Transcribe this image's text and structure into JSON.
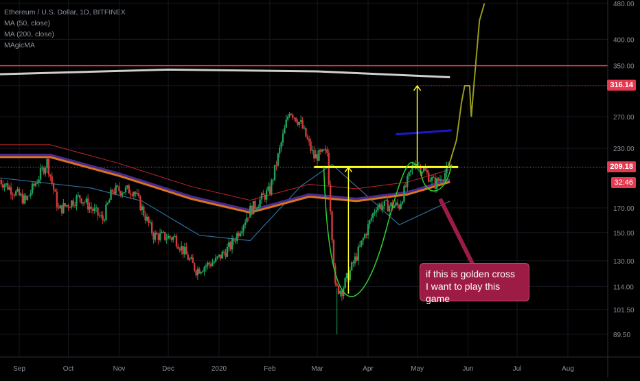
{
  "legend": {
    "title": "Ethereum / U.S. Dollar, 1D, BITFINEX",
    "lines": [
      "MA (50, close)",
      "MA (200, close)",
      "MAgicMA"
    ]
  },
  "annotation": {
    "line1": "if this is golden cross",
    "line2": "I want to play this game"
  },
  "price_tags": {
    "upper": "316.14",
    "current": "209.18",
    "countdown": "32:46"
  },
  "colors": {
    "background": "#000000",
    "grid": "#151820",
    "up": "#1fa35c",
    "down": "#d23b3b",
    "resistance": "#e53950",
    "support": "#ffff22",
    "callout": "#9c1c46",
    "ma200": "#cfcfcf",
    "ma50": "#2e6e9a",
    "magic_orange": "#d9741a",
    "magic_purple": "#4a2a8a",
    "projection": "#9b9b1a",
    "green_curve": "#2fd12f",
    "blue_line": "#1a1acc"
  },
  "chart_data": {
    "type": "candlestick",
    "title": "Ethereum / U.S. Dollar, 1D, BITFINEX",
    "y_scale": "log",
    "y_ticks": [
      "480.00",
      "400.00",
      "350.00",
      "316.14",
      "270.00",
      "230.00",
      "209.18",
      "170.00",
      "150.00",
      "130.00",
      "114.00",
      "101.50",
      "89.50"
    ],
    "y_tick_values": [
      480,
      400,
      350,
      316.14,
      270,
      230,
      209.18,
      170,
      150,
      130,
      114,
      101.5,
      89.5
    ],
    "x_ticks": [
      "Sep",
      "Oct",
      "Nov",
      "Dec",
      "2020",
      "Feb",
      "Mar",
      "Apr",
      "May",
      "Jun",
      "Jul",
      "Aug"
    ],
    "x_tick_dates": [
      "2019-09-01",
      "2019-10-01",
      "2019-11-01",
      "2019-12-01",
      "2020-01-01",
      "2020-02-01",
      "2020-03-01",
      "2020-04-01",
      "2020-05-01",
      "2020-06-01",
      "2020-07-01",
      "2020-08-01"
    ],
    "candle_range": [
      "2019-08-20",
      "2020-05-21"
    ],
    "anchors": [
      {
        "date": "2019-08-20",
        "price": 196
      },
      {
        "date": "2019-09-05",
        "price": 176
      },
      {
        "date": "2019-09-18",
        "price": 215
      },
      {
        "date": "2019-09-25",
        "price": 168
      },
      {
        "date": "2019-10-08",
        "price": 180
      },
      {
        "date": "2019-10-22",
        "price": 160
      },
      {
        "date": "2019-10-28",
        "price": 186
      },
      {
        "date": "2019-11-10",
        "price": 186
      },
      {
        "date": "2019-11-22",
        "price": 148
      },
      {
        "date": "2019-12-05",
        "price": 146
      },
      {
        "date": "2019-12-18",
        "price": 124
      },
      {
        "date": "2019-12-30",
        "price": 130
      },
      {
        "date": "2020-01-08",
        "price": 140
      },
      {
        "date": "2020-01-20",
        "price": 168
      },
      {
        "date": "2020-02-01",
        "price": 186
      },
      {
        "date": "2020-02-13",
        "price": 280
      },
      {
        "date": "2020-02-20",
        "price": 260
      },
      {
        "date": "2020-02-28",
        "price": 220
      },
      {
        "date": "2020-03-07",
        "price": 225
      },
      {
        "date": "2020-03-12",
        "price": 113
      },
      {
        "date": "2020-03-16",
        "price": 112
      },
      {
        "date": "2020-03-26",
        "price": 136
      },
      {
        "date": "2020-04-06",
        "price": 172
      },
      {
        "date": "2020-04-20",
        "price": 172
      },
      {
        "date": "2020-04-29",
        "price": 214
      },
      {
        "date": "2020-05-05",
        "price": 206
      },
      {
        "date": "2020-05-12",
        "price": 192
      },
      {
        "date": "2020-05-21",
        "price": 209
      }
    ],
    "moving_averages": [
      {
        "name": "MA (200, close)",
        "points": [
          {
            "date": "2019-08-20",
            "price": 335
          },
          {
            "date": "2019-12-01",
            "price": 343
          },
          {
            "date": "2020-03-01",
            "price": 340
          },
          {
            "date": "2020-05-21",
            "price": 330
          }
        ]
      },
      {
        "name": "MA (50, close)",
        "points": [
          {
            "date": "2019-08-20",
            "price": 198
          },
          {
            "date": "2019-10-15",
            "price": 188
          },
          {
            "date": "2019-11-15",
            "price": 176
          },
          {
            "date": "2019-12-20",
            "price": 148
          },
          {
            "date": "2020-01-20",
            "price": 144
          },
          {
            "date": "2020-02-20",
            "price": 190
          },
          {
            "date": "2020-03-10",
            "price": 212
          },
          {
            "date": "2020-04-20",
            "price": 156
          },
          {
            "date": "2020-05-21",
            "price": 176
          }
        ]
      },
      {
        "name": "MAgicMA",
        "points": [
          {
            "date": "2019-08-20",
            "price": 220
          },
          {
            "date": "2019-09-20",
            "price": 220
          },
          {
            "date": "2019-11-01",
            "price": 200
          },
          {
            "date": "2019-12-15",
            "price": 178
          },
          {
            "date": "2020-01-20",
            "price": 166
          },
          {
            "date": "2020-02-25",
            "price": 180
          },
          {
            "date": "2020-03-25",
            "price": 176
          },
          {
            "date": "2020-04-25",
            "price": 182
          },
          {
            "date": "2020-05-21",
            "price": 194
          }
        ]
      }
    ],
    "projection": [
      {
        "date": "2020-05-20",
        "price": 209
      },
      {
        "date": "2020-05-25",
        "price": 240
      },
      {
        "date": "2020-05-28",
        "price": 290
      },
      {
        "date": "2020-05-30",
        "price": 316
      },
      {
        "date": "2020-06-02",
        "price": 316
      },
      {
        "date": "2020-06-03",
        "price": 270
      },
      {
        "date": "2020-06-05",
        "price": 330
      },
      {
        "date": "2020-06-08",
        "price": 440
      },
      {
        "date": "2020-06-11",
        "price": 480
      }
    ],
    "levels": [
      {
        "name": "resistance",
        "price": 350
      },
      {
        "name": "support",
        "price": 209.18,
        "from": "2020-02-28",
        "to": "2020-05-26"
      },
      {
        "name": "target",
        "price": 316.14
      }
    ],
    "measure_arrows": [
      {
        "date": "2020-03-20",
        "from": 110,
        "to": 209
      },
      {
        "date": "2020-05-01",
        "from": 209,
        "to": 316
      }
    ]
  }
}
